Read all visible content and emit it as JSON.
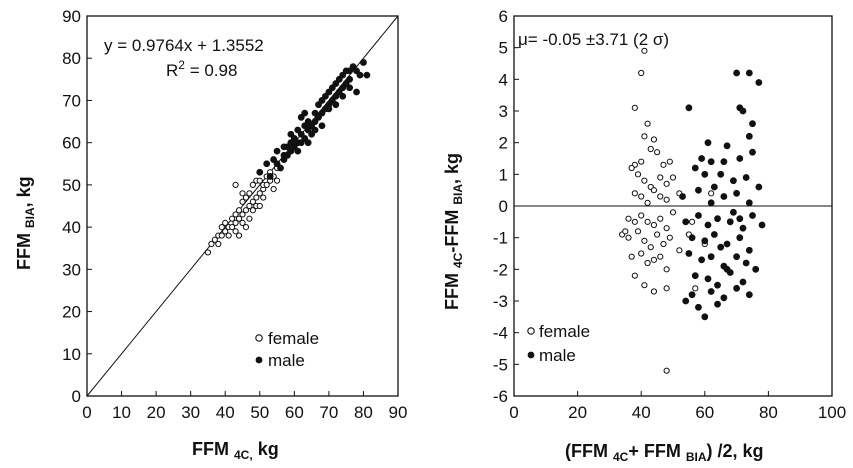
{
  "chart_data": [
    {
      "type": "scatter",
      "title": "",
      "xlabel": {
        "main": "FFM ",
        "sub": "4C,",
        "tail": " kg"
      },
      "ylabel": {
        "main": "FFM ",
        "sub": "BIA",
        "tail": ", kg"
      },
      "xlim": [
        0,
        90
      ],
      "ylim": [
        0,
        90
      ],
      "xticks": [
        "0",
        "10",
        "20",
        "30",
        "40",
        "50",
        "60",
        "70",
        "80",
        "90"
      ],
      "yticks": [
        "0",
        "10",
        "20",
        "30",
        "40",
        "50",
        "60",
        "70",
        "80",
        "90"
      ],
      "annotation": {
        "equation": "y = 0.9764x + 1.3552",
        "r2_prefix": "R",
        "r2_sup": "2",
        "r2_suffix": " = 0.98"
      },
      "identity_line": [
        [
          0,
          0
        ],
        [
          90,
          90
        ]
      ],
      "legend": {
        "position": "bottom-right",
        "labels": [
          "female",
          "male"
        ]
      },
      "series": [
        {
          "name": "female",
          "marker": "open-circle",
          "points": [
            [
              35,
              34
            ],
            [
              36,
              36
            ],
            [
              37,
              37
            ],
            [
              38,
              38
            ],
            [
              38,
              36
            ],
            [
              39,
              38
            ],
            [
              39,
              40
            ],
            [
              40,
              39
            ],
            [
              40,
              41
            ],
            [
              41,
              38
            ],
            [
              41,
              40
            ],
            [
              42,
              42
            ],
            [
              42,
              40
            ],
            [
              43,
              41
            ],
            [
              43,
              43
            ],
            [
              43,
              39
            ],
            [
              44,
              44
            ],
            [
              44,
              42
            ],
            [
              44,
              38
            ],
            [
              45,
              46
            ],
            [
              45,
              43
            ],
            [
              45,
              41
            ],
            [
              46,
              44
            ],
            [
              46,
              47
            ],
            [
              46,
              40
            ],
            [
              47,
              45
            ],
            [
              47,
              48
            ],
            [
              48,
              46
            ],
            [
              48,
              50
            ],
            [
              48,
              44
            ],
            [
              49,
              47
            ],
            [
              49,
              51
            ],
            [
              49,
              45
            ],
            [
              50,
              48
            ],
            [
              50,
              51
            ],
            [
              50,
              45
            ],
            [
              51,
              49
            ],
            [
              51,
              50
            ],
            [
              51,
              47
            ],
            [
              52,
              52
            ],
            [
              52,
              50
            ],
            [
              53,
              51
            ],
            [
              53,
              53
            ],
            [
              54,
              52
            ],
            [
              54,
              49
            ],
            [
              55,
              54
            ],
            [
              55,
              51
            ],
            [
              43,
              50
            ],
            [
              45,
              48
            ],
            [
              47,
              42
            ]
          ]
        },
        {
          "name": "male",
          "marker": "filled-circle",
          "points": [
            [
              50,
              53
            ],
            [
              52,
              55
            ],
            [
              53,
              52
            ],
            [
              54,
              56
            ],
            [
              55,
              55
            ],
            [
              55,
              58
            ],
            [
              56,
              54
            ],
            [
              57,
              57
            ],
            [
              57,
              56
            ],
            [
              58,
              59
            ],
            [
              58,
              57
            ],
            [
              59,
              60
            ],
            [
              59,
              58
            ],
            [
              60,
              59
            ],
            [
              60,
              61
            ],
            [
              61,
              60
            ],
            [
              61,
              63
            ],
            [
              62,
              62
            ],
            [
              62,
              60
            ],
            [
              63,
              64
            ],
            [
              63,
              61
            ],
            [
              64,
              63
            ],
            [
              64,
              65
            ],
            [
              65,
              64
            ],
            [
              65,
              62
            ],
            [
              66,
              67
            ],
            [
              66,
              65
            ],
            [
              67,
              66
            ],
            [
              67,
              69
            ],
            [
              68,
              67
            ],
            [
              68,
              70
            ],
            [
              69,
              68
            ],
            [
              69,
              71
            ],
            [
              70,
              69
            ],
            [
              70,
              72
            ],
            [
              71,
              70
            ],
            [
              71,
              73
            ],
            [
              72,
              71
            ],
            [
              72,
              74
            ],
            [
              73,
              72
            ],
            [
              73,
              75
            ],
            [
              74,
              73
            ],
            [
              74,
              76
            ],
            [
              75,
              74
            ],
            [
              75,
              77
            ],
            [
              76,
              75
            ],
            [
              76,
              73
            ],
            [
              77,
              78
            ],
            [
              78,
              77
            ],
            [
              79,
              76
            ],
            [
              80,
              79
            ],
            [
              81,
              76
            ],
            [
              62,
              66
            ],
            [
              64,
              60
            ],
            [
              66,
              63
            ],
            [
              68,
              64
            ],
            [
              70,
              68
            ],
            [
              72,
              69
            ],
            [
              74,
              71
            ],
            [
              76,
              77
            ],
            [
              78,
              72
            ],
            [
              57,
              59
            ],
            [
              59,
              62
            ],
            [
              61,
              58
            ],
            [
              63,
              67
            ]
          ]
        }
      ]
    },
    {
      "type": "scatter",
      "title": "",
      "xlabel": {
        "pre": "(FFM ",
        "sub1": "4C",
        "mid": "+ FFM ",
        "sub2": "BIA",
        "tail": ") /2, kg"
      },
      "ylabel": {
        "main": "FFM ",
        "sub1": "4C",
        "mid": "-FFM ",
        "sub2": "BIA",
        "tail": ", kg"
      },
      "xlim": [
        0,
        100
      ],
      "ylim": [
        -6,
        6
      ],
      "xticks": [
        "0",
        "20",
        "40",
        "60",
        "80",
        "100"
      ],
      "yticks": [
        "-6",
        "-5",
        "-4",
        "-3",
        "-2",
        "-1",
        "0",
        "1",
        "2",
        "3",
        "4",
        "5",
        "6"
      ],
      "annotation": {
        "text": "μ= -0.05 ±3.71 (2 σ)"
      },
      "zero_line": 0,
      "legend": {
        "position": "bottom-left",
        "labels": [
          "female",
          "male"
        ]
      },
      "series": [
        {
          "name": "female",
          "marker": "open-circle",
          "points": [
            [
              41,
              4.9
            ],
            [
              40,
              4.2
            ],
            [
              38,
              3.1
            ],
            [
              42,
              2.6
            ],
            [
              41,
              2.2
            ],
            [
              38,
              1.3
            ],
            [
              40,
              1.4
            ],
            [
              43,
              1.8
            ],
            [
              45,
              1.7
            ],
            [
              47,
              1.3
            ],
            [
              49,
              1.4
            ],
            [
              37,
              1.2
            ],
            [
              39,
              1.0
            ],
            [
              41,
              0.8
            ],
            [
              43,
              0.6
            ],
            [
              46,
              0.9
            ],
            [
              48,
              0.7
            ],
            [
              50,
              0.9
            ],
            [
              38,
              0.4
            ],
            [
              40,
              0.3
            ],
            [
              42,
              0.1
            ],
            [
              44,
              0.5
            ],
            [
              46,
              0.3
            ],
            [
              48,
              0.2
            ],
            [
              36,
              -0.4
            ],
            [
              38,
              -0.5
            ],
            [
              40,
              -0.3
            ],
            [
              42,
              -0.5
            ],
            [
              44,
              -0.6
            ],
            [
              46,
              -0.4
            ],
            [
              48,
              -0.7
            ],
            [
              34,
              -0.9
            ],
            [
              36,
              -1.0
            ],
            [
              39,
              -0.8
            ],
            [
              41,
              -1.1
            ],
            [
              43,
              -1.3
            ],
            [
              45,
              -0.9
            ],
            [
              47,
              -1.2
            ],
            [
              49,
              -1.0
            ],
            [
              37,
              -1.6
            ],
            [
              40,
              -1.5
            ],
            [
              42,
              -1.8
            ],
            [
              44,
              -1.7
            ],
            [
              46,
              -1.6
            ],
            [
              48,
              -2.0
            ],
            [
              38,
              -2.2
            ],
            [
              41,
              -2.5
            ],
            [
              44,
              -2.7
            ],
            [
              48,
              -2.6
            ],
            [
              48,
              -5.2
            ],
            [
              52,
              -1.4
            ],
            [
              56,
              -0.5
            ],
            [
              60,
              -1.2
            ],
            [
              55,
              -0.9
            ],
            [
              57,
              -2.6
            ],
            [
              62,
              0.4
            ],
            [
              44,
              2.1
            ],
            [
              50,
              -0.2
            ],
            [
              35,
              -0.8
            ],
            [
              52,
              0.4
            ]
          ]
        },
        {
          "name": "male",
          "marker": "filled-circle",
          "points": [
            [
              70,
              4.2
            ],
            [
              74,
              4.2
            ],
            [
              77,
              3.9
            ],
            [
              55,
              3.1
            ],
            [
              71,
              3.1
            ],
            [
              75,
              2.6
            ],
            [
              72,
              3.0
            ],
            [
              61,
              2.0
            ],
            [
              67,
              1.9
            ],
            [
              74,
              2.2
            ],
            [
              59,
              1.5
            ],
            [
              62,
              1.4
            ],
            [
              66,
              1.4
            ],
            [
              71,
              1.5
            ],
            [
              75,
              1.7
            ],
            [
              57,
              1.2
            ],
            [
              65,
              1.0
            ],
            [
              69,
              0.8
            ],
            [
              73,
              0.9
            ],
            [
              53,
              0.3
            ],
            [
              58,
              0.5
            ],
            [
              62,
              0.1
            ],
            [
              66,
              0.3
            ],
            [
              70,
              0.4
            ],
            [
              74,
              0.1
            ],
            [
              77,
              0.6
            ],
            [
              54,
              -0.5
            ],
            [
              58,
              -0.3
            ],
            [
              61,
              -0.6
            ],
            [
              64,
              -0.4
            ],
            [
              68,
              -0.5
            ],
            [
              72,
              -0.7
            ],
            [
              75,
              -0.3
            ],
            [
              78,
              -0.6
            ],
            [
              56,
              -1.0
            ],
            [
              60,
              -1.1
            ],
            [
              63,
              -0.9
            ],
            [
              67,
              -1.2
            ],
            [
              71,
              -1.0
            ],
            [
              74,
              -1.4
            ],
            [
              55,
              -1.5
            ],
            [
              59,
              -1.7
            ],
            [
              62,
              -1.6
            ],
            [
              66,
              -1.9
            ],
            [
              70,
              -1.6
            ],
            [
              73,
              -1.8
            ],
            [
              57,
              -2.2
            ],
            [
              61,
              -2.3
            ],
            [
              64,
              -2.5
            ],
            [
              68,
              -2.1
            ],
            [
              72,
              -2.4
            ],
            [
              76,
              -2.0
            ],
            [
              54,
              -3.0
            ],
            [
              58,
              -3.2
            ],
            [
              62,
              -2.7
            ],
            [
              66,
              -2.9
            ],
            [
              70,
              -2.6
            ],
            [
              74,
              -2.8
            ],
            [
              60,
              -3.5
            ],
            [
              56,
              -2.8
            ],
            [
              64,
              -3.1
            ],
            [
              69,
              -0.2
            ],
            [
              63,
              0.6
            ],
            [
              67,
              -2.0
            ],
            [
              71,
              -0.4
            ],
            [
              60,
              1.0
            ],
            [
              65,
              -1.3
            ]
          ]
        }
      ]
    }
  ]
}
